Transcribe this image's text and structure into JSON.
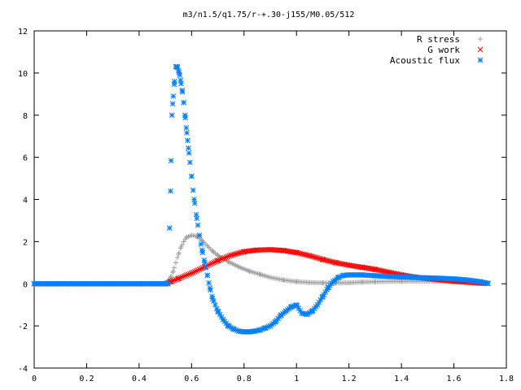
{
  "chart_data": {
    "type": "scatter",
    "title": "m3/n1.5/q1.75/r-+.30-j155/M0.05/512",
    "xlabel": "",
    "ylabel": "",
    "xlim": [
      0,
      1.8
    ],
    "ylim": [
      -4,
      12
    ],
    "x_ticks": [
      "0",
      "0.2",
      "0.4",
      "0.6",
      "0.8",
      "1",
      "1.2",
      "1.4",
      "1.6",
      "1.8"
    ],
    "y_ticks": [
      "-4",
      "-2",
      "0",
      "2",
      "4",
      "6",
      "8",
      "10",
      "12"
    ],
    "grid": false,
    "legend_position": "top-right",
    "series": [
      {
        "name": "R stress",
        "marker": "+",
        "color": "#a0a0a0",
        "x": [
          0.0,
          0.1,
          0.2,
          0.3,
          0.4,
          0.5,
          0.52,
          0.53,
          0.54,
          0.55,
          0.56,
          0.57,
          0.58,
          0.6,
          0.62,
          0.64,
          0.66,
          0.68,
          0.7,
          0.74,
          0.78,
          0.82,
          0.86,
          0.9,
          0.95,
          1.0,
          1.05,
          1.1,
          1.15,
          1.2,
          1.25,
          1.3,
          1.4,
          1.5,
          1.6,
          1.7,
          1.73
        ],
        "y": [
          0,
          0,
          0,
          0,
          0,
          0,
          0.3,
          0.6,
          1.0,
          1.4,
          1.75,
          2.0,
          2.2,
          2.3,
          2.25,
          2.05,
          1.8,
          1.55,
          1.35,
          1.05,
          0.8,
          0.6,
          0.45,
          0.3,
          0.18,
          0.1,
          0.06,
          0.04,
          0.03,
          0.05,
          0.08,
          0.1,
          0.12,
          0.12,
          0.1,
          0.06,
          0.04
        ]
      },
      {
        "name": "G work",
        "marker": "x",
        "color": "#ff0000",
        "x": [
          0.0,
          0.1,
          0.2,
          0.3,
          0.4,
          0.5,
          0.52,
          0.55,
          0.6,
          0.65,
          0.7,
          0.75,
          0.8,
          0.85,
          0.9,
          0.95,
          1.0,
          1.05,
          1.1,
          1.15,
          1.2,
          1.25,
          1.3,
          1.35,
          1.4,
          1.45,
          1.5,
          1.55,
          1.6,
          1.65,
          1.7,
          1.73
        ],
        "y": [
          0,
          0,
          0,
          0,
          0,
          0,
          0.1,
          0.25,
          0.5,
          0.8,
          1.1,
          1.35,
          1.52,
          1.6,
          1.62,
          1.58,
          1.48,
          1.33,
          1.15,
          1.0,
          0.88,
          0.78,
          0.68,
          0.55,
          0.42,
          0.32,
          0.25,
          0.18,
          0.12,
          0.07,
          0.03,
          0.01
        ]
      },
      {
        "name": "Acoustic flux",
        "marker": "*",
        "color": "#0080ff",
        "x": [
          0.0,
          0.1,
          0.2,
          0.3,
          0.4,
          0.5,
          0.51,
          0.52,
          0.525,
          0.53,
          0.535,
          0.54,
          0.545,
          0.55,
          0.555,
          0.56,
          0.565,
          0.57,
          0.575,
          0.58,
          0.585,
          0.59,
          0.6,
          0.61,
          0.62,
          0.63,
          0.64,
          0.65,
          0.66,
          0.67,
          0.68,
          0.7,
          0.72,
          0.74,
          0.76,
          0.78,
          0.8,
          0.82,
          0.84,
          0.86,
          0.88,
          0.9,
          0.92,
          0.94,
          0.96,
          0.98,
          1.0,
          1.02,
          1.04,
          1.06,
          1.08,
          1.1,
          1.12,
          1.14,
          1.16,
          1.18,
          1.2,
          1.25,
          1.3,
          1.35,
          1.4,
          1.45,
          1.5,
          1.55,
          1.6,
          1.65,
          1.7,
          1.73
        ],
        "y": [
          0,
          0,
          0,
          0,
          0,
          0,
          0,
          4.4,
          8.0,
          8.9,
          9.6,
          10.3,
          10.3,
          10.1,
          9.9,
          9.5,
          9.1,
          8.6,
          8.0,
          7.4,
          6.8,
          6.2,
          5.1,
          4.0,
          3.1,
          2.3,
          1.6,
          1.0,
          0.4,
          -0.2,
          -0.7,
          -1.3,
          -1.7,
          -2.0,
          -2.15,
          -2.25,
          -2.28,
          -2.28,
          -2.25,
          -2.2,
          -2.1,
          -2.0,
          -1.8,
          -1.5,
          -1.3,
          -1.1,
          -1.0,
          -1.4,
          -1.45,
          -1.3,
          -1.0,
          -0.6,
          -0.2,
          0.1,
          0.3,
          0.4,
          0.42,
          0.42,
          0.38,
          0.35,
          0.32,
          0.3,
          0.28,
          0.26,
          0.23,
          0.18,
          0.1,
          0.02
        ]
      }
    ]
  }
}
